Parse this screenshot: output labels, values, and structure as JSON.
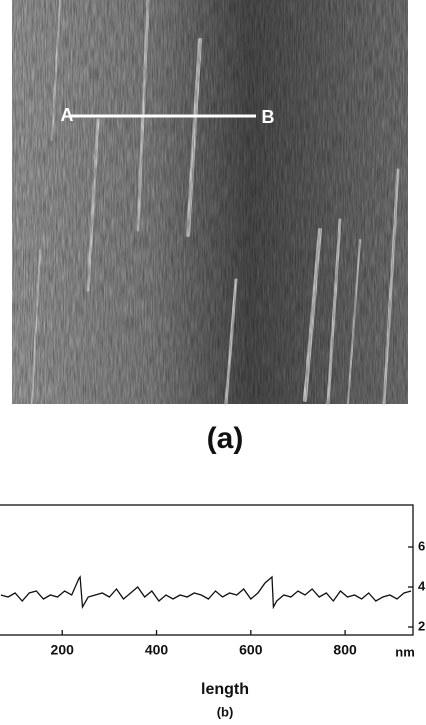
{
  "figure": {
    "panel_label": "(a)",
    "marker_start": "A",
    "marker_end": "B"
  },
  "chart_data": {
    "type": "line",
    "xlabel": "length",
    "x_unit": "nm",
    "caption": "(b)",
    "x": [
      70,
      85,
      100,
      115,
      130,
      145,
      160,
      175,
      190,
      205,
      220,
      235,
      238,
      243,
      255,
      270,
      285,
      300,
      315,
      330,
      345,
      360,
      375,
      390,
      405,
      420,
      435,
      450,
      465,
      480,
      495,
      510,
      525,
      540,
      555,
      570,
      585,
      600,
      615,
      630,
      645,
      648,
      655,
      670,
      685,
      700,
      715,
      730,
      745,
      760,
      775,
      790,
      805,
      820,
      835,
      850,
      865,
      880,
      895,
      910,
      925,
      940
    ],
    "series": [
      {
        "color": "#111111",
        "values": [
          3.6,
          3.5,
          3.7,
          3.3,
          3.7,
          3.8,
          3.4,
          3.6,
          3.5,
          3.8,
          3.6,
          4.4,
          4.5,
          3.0,
          3.5,
          3.6,
          3.7,
          3.5,
          3.9,
          3.4,
          3.7,
          4.0,
          3.5,
          3.8,
          3.3,
          3.6,
          3.4,
          3.6,
          3.5,
          3.7,
          3.6,
          3.4,
          3.8,
          3.5,
          3.7,
          3.6,
          3.9,
          3.4,
          3.7,
          4.2,
          4.5,
          3.0,
          3.3,
          3.6,
          3.5,
          3.8,
          3.6,
          3.9,
          3.5,
          3.7,
          3.3,
          3.8,
          3.5,
          3.6,
          3.4,
          3.7,
          3.3,
          3.5,
          3.6,
          3.4,
          3.7,
          3.8
        ]
      }
    ],
    "xlim": [
      68,
      944
    ],
    "xticks": [
      200,
      400,
      600,
      800
    ],
    "ylim": [
      1.6,
      8.1
    ],
    "yticks": [
      2,
      4,
      6
    ]
  }
}
